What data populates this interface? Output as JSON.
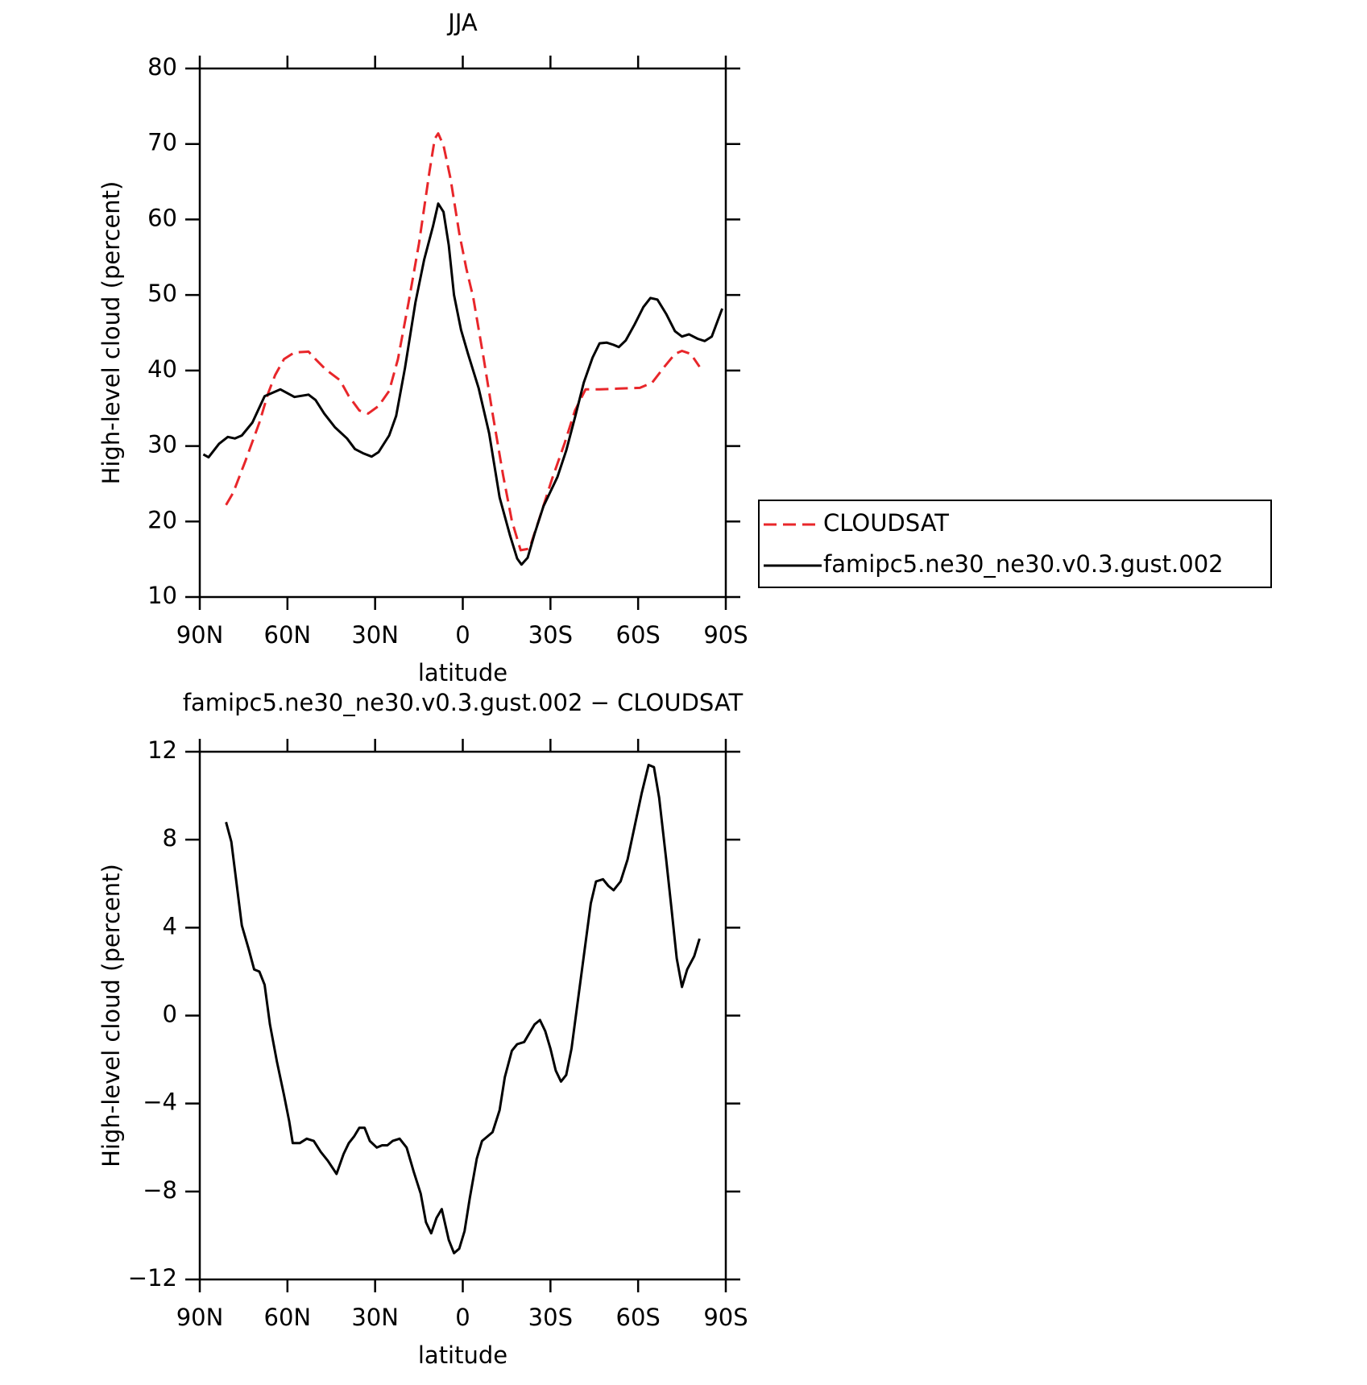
{
  "chart_data": [
    {
      "type": "line",
      "title": "JJA",
      "xlabel": "latitude",
      "ylabel": "High-level cloud (percent)",
      "xlim": [
        90,
        -90
      ],
      "xticks": [
        {
          "value": 90,
          "label": "90N"
        },
        {
          "value": 60,
          "label": "60N"
        },
        {
          "value": 30,
          "label": "30N"
        },
        0,
        {
          "value": -30,
          "label": "30S"
        },
        {
          "value": -60,
          "label": "60S"
        },
        {
          "value": -90,
          "label": "90S"
        }
      ],
      "ylim": [
        10,
        80
      ],
      "yticks": [
        10,
        20,
        30,
        40,
        50,
        60,
        70,
        80
      ],
      "legend": "right",
      "series": [
        {
          "name": "CLOUDSAT",
          "color": "#e8262a",
          "dashed": true,
          "x": [
            81,
            78.6,
            74.4,
            69.6,
            66.6,
            64.2,
            61.2,
            57.6,
            52.8,
            50.4,
            46.8,
            42,
            39,
            35.4,
            32.4,
            28.8,
            25.2,
            22.2,
            18.6,
            15,
            11.4,
            9.6,
            8.4,
            6.6,
            4.2,
            1.2,
            -1.2,
            -3.6,
            -7.2,
            -10.2,
            -13.8,
            -16.8,
            -19.8,
            -22.8,
            -25.8,
            -30.6,
            -34.8,
            -38.4,
            -42,
            -46.8,
            -53.4,
            -60.6,
            -64.8,
            -69,
            -72.6,
            -75,
            -78,
            -81
          ],
          "values": [
            22.2,
            23.8,
            28,
            33.1,
            37,
            39.4,
            41.5,
            42.4,
            42.5,
            41.5,
            40.1,
            38.7,
            36.6,
            34.7,
            34.3,
            35.3,
            37.3,
            41.5,
            48.9,
            56.8,
            66.3,
            70.7,
            71.4,
            69.8,
            65.4,
            58.2,
            53.5,
            49.6,
            41.5,
            34.3,
            26.1,
            20.1,
            16.2,
            16.4,
            19.9,
            25.7,
            30.3,
            34.7,
            37.5,
            37.5,
            37.6,
            37.7,
            38.4,
            40.5,
            42.2,
            42.6,
            42.2,
            40.5
          ]
        },
        {
          "name": "famipc5.ne30_ne30.v0.3.gust.002",
          "color": "#000000",
          "dashed": false,
          "x": [
            88.8,
            87,
            83.4,
            80.4,
            78,
            75.6,
            72,
            67.8,
            62.4,
            57.6,
            52.8,
            50.4,
            47.4,
            43.8,
            39.6,
            36.9,
            33.9,
            31.2,
            28.8,
            25.2,
            22.8,
            19.8,
            16.2,
            13.2,
            10.2,
            8.4,
            6.6,
            4.8,
            3,
            0.6,
            -1.8,
            -5.4,
            -9,
            -12.6,
            -16.2,
            -18.6,
            -20.1,
            -22.2,
            -24.6,
            -27.6,
            -32.4,
            -35.4,
            -38.4,
            -41.4,
            -44.4,
            -46.8,
            -49.2,
            -51.6,
            -53.4,
            -55.8,
            -58.8,
            -61.8,
            -64.2,
            -66.6,
            -69.6,
            -72.6,
            -75,
            -77.4,
            -80.4,
            -82.8,
            -85.2,
            -88.8
          ],
          "values": [
            28.9,
            28.5,
            30.3,
            31.2,
            31,
            31.4,
            33.1,
            36.6,
            37.5,
            36.5,
            36.8,
            36.1,
            34.3,
            32.5,
            31,
            29.6,
            29,
            28.6,
            29.2,
            31.4,
            34,
            40.3,
            49,
            54.7,
            59.1,
            62.1,
            61,
            56.6,
            50,
            45.4,
            42.2,
            37.7,
            31.7,
            23.2,
            18.1,
            15.1,
            14.3,
            15.2,
            18.4,
            22,
            25.9,
            29.4,
            33.8,
            38.4,
            41.7,
            43.6,
            43.7,
            43.4,
            43.1,
            44,
            46.1,
            48.4,
            49.6,
            49.4,
            47.5,
            45.2,
            44.5,
            44.8,
            44.2,
            43.9,
            44.5,
            48.2
          ]
        }
      ]
    },
    {
      "type": "line",
      "title": "famipc5.ne30_ne30.v0.3.gust.002 − CLOUDSAT",
      "xlabel": "latitude",
      "ylabel": "High-level cloud (percent)",
      "xlim": [
        90,
        -90
      ],
      "xticks": [
        {
          "value": 90,
          "label": "90N"
        },
        {
          "value": 60,
          "label": "60N"
        },
        {
          "value": 30,
          "label": "30N"
        },
        0,
        {
          "value": -30,
          "label": "30S"
        },
        {
          "value": -60,
          "label": "60S"
        },
        {
          "value": -90,
          "label": "90S"
        }
      ],
      "ylim": [
        -12,
        12
      ],
      "yticks": [
        {
          "value": -12,
          "label": "−12"
        },
        {
          "value": -8,
          "label": "−8"
        },
        {
          "value": -4,
          "label": "−4"
        },
        0,
        4,
        8,
        12
      ],
      "series": [
        {
          "color": "#000000",
          "dashed": false,
          "x": [
            81,
            79.2,
            75.6,
            73.2,
            71.4,
            69.6,
            67.8,
            66,
            63.6,
            61.2,
            59.4,
            58.2,
            55.8,
            53.4,
            51,
            48.6,
            46.2,
            43.2,
            40.8,
            39,
            37.2,
            35.4,
            33.6,
            31.8,
            29.4,
            27.6,
            25.8,
            24,
            21.6,
            19.2,
            16.8,
            14.4,
            12.6,
            10.8,
            9,
            7.2,
            4.8,
            3,
            1.2,
            -0.6,
            -2.4,
            -4.8,
            -6.6,
            -8.4,
            -10.2,
            -12.6,
            -14.4,
            -16.8,
            -18.6,
            -21,
            -22.8,
            -24.6,
            -26.4,
            -28.2,
            -30,
            -31.8,
            -33.6,
            -35.4,
            -37.2,
            -39,
            -41.4,
            -43.8,
            -45.6,
            -48,
            -49.8,
            -51.6,
            -54,
            -56.4,
            -58.8,
            -61.2,
            -63.6,
            -65.4,
            -67.2,
            -69.6,
            -71.4,
            -73.2,
            -75,
            -76.8,
            -79.2,
            -81
          ],
          "values": [
            8.8,
            7.9,
            4.1,
            3.0,
            2.1,
            2.0,
            1.4,
            -0.4,
            -2.1,
            -3.6,
            -4.8,
            -5.8,
            -5.8,
            -5.6,
            -5.7,
            -6.2,
            -6.6,
            -7.2,
            -6.3,
            -5.8,
            -5.5,
            -5.1,
            -5.1,
            -5.7,
            -6.0,
            -5.9,
            -5.9,
            -5.7,
            -5.6,
            -6.0,
            -7.1,
            -8.1,
            -9.4,
            -9.9,
            -9.2,
            -8.8,
            -10.2,
            -10.8,
            -10.6,
            -9.8,
            -8.3,
            -6.5,
            -5.7,
            -5.5,
            -5.3,
            -4.3,
            -2.8,
            -1.6,
            -1.3,
            -1.2,
            -0.8,
            -0.4,
            -0.2,
            -0.7,
            -1.5,
            -2.5,
            -3.0,
            -2.7,
            -1.5,
            0.3,
            2.7,
            5.1,
            6.1,
            6.2,
            5.9,
            5.7,
            6.1,
            7.1,
            8.6,
            10.1,
            11.4,
            11.3,
            9.9,
            7.1,
            4.9,
            2.6,
            1.3,
            2.1,
            2.7,
            3.5
          ]
        }
      ]
    }
  ]
}
